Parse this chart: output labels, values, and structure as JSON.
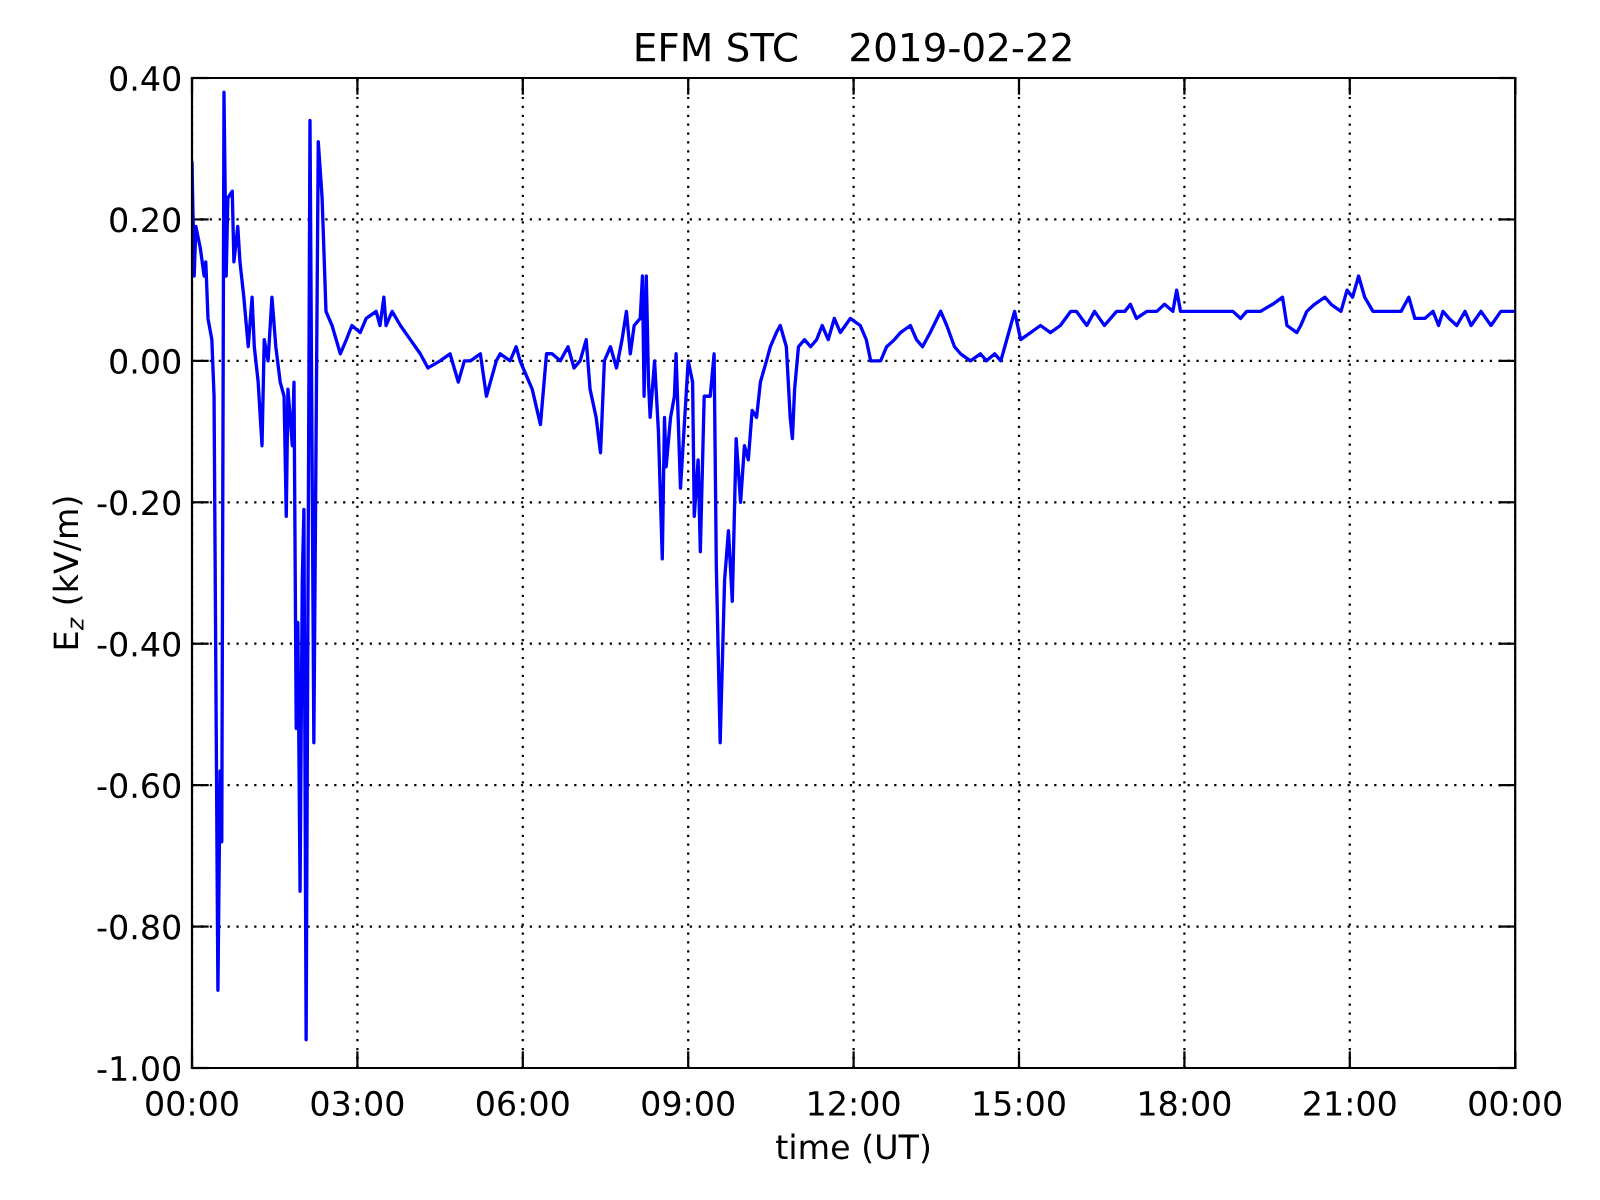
{
  "chart_data": {
    "type": "line",
    "title": "EFM STC    2019-02-22",
    "xlabel": "time (UT)",
    "ylabel": "E$_{z}$ (kV/m)",
    "xlim": [
      0,
      24
    ],
    "xticks": [
      {
        "value": 0,
        "label": "00:00"
      },
      {
        "value": 3,
        "label": "03:00"
      },
      {
        "value": 6,
        "label": "06:00"
      },
      {
        "value": 9,
        "label": "09:00"
      },
      {
        "value": 12,
        "label": "12:00"
      },
      {
        "value": 15,
        "label": "15:00"
      },
      {
        "value": 18,
        "label": "18:00"
      },
      {
        "value": 21,
        "label": "21:00"
      },
      {
        "value": 24,
        "label": "00:00"
      }
    ],
    "ylim": [
      -1.0,
      0.4
    ],
    "yticks": [
      {
        "value": -1.0,
        "label": "-1.00"
      },
      {
        "value": -0.8,
        "label": "-0.80"
      },
      {
        "value": -0.6,
        "label": "-0.60"
      },
      {
        "value": -0.4,
        "label": "-0.40"
      },
      {
        "value": -0.2,
        "label": "-0.20"
      },
      {
        "value": 0,
        "label": "0.00"
      },
      {
        "value": 0.2,
        "label": "0.20"
      },
      {
        "value": 0.4,
        "label": "0.40"
      }
    ],
    "grid": true,
    "marker": "none",
    "line_style": "solid",
    "series": [
      {
        "color": "#0000ff",
        "x": [
          0.0,
          0.04,
          0.07,
          0.15,
          0.22,
          0.25,
          0.29,
          0.36,
          0.4,
          0.47,
          0.51,
          0.54,
          0.58,
          0.62,
          0.65,
          0.73,
          0.76,
          0.83,
          0.87,
          0.94,
          1.02,
          1.09,
          1.13,
          1.2,
          1.27,
          1.31,
          1.38,
          1.45,
          1.52,
          1.6,
          1.67,
          1.71,
          1.74,
          1.82,
          1.85,
          1.89,
          1.92,
          1.96,
          2.0,
          2.03,
          2.07,
          2.14,
          2.21,
          2.29,
          2.36,
          2.43,
          2.54,
          2.69,
          2.8,
          2.9,
          3.05,
          3.16,
          3.34,
          3.41,
          3.48,
          3.52,
          3.63,
          3.78,
          3.96,
          4.14,
          4.28,
          4.5,
          4.68,
          4.83,
          4.94,
          5.05,
          5.23,
          5.34,
          5.52,
          5.59,
          5.77,
          5.88,
          5.95,
          6.06,
          6.17,
          6.32,
          6.43,
          6.53,
          6.68,
          6.82,
          6.93,
          7.04,
          7.15,
          7.22,
          7.33,
          7.41,
          7.48,
          7.59,
          7.7,
          7.8,
          7.88,
          7.95,
          8.02,
          8.13,
          8.17,
          8.2,
          8.24,
          8.28,
          8.31,
          8.39,
          8.46,
          8.53,
          8.57,
          8.6,
          8.68,
          8.75,
          8.78,
          8.86,
          8.93,
          9.0,
          9.08,
          9.11,
          9.18,
          9.22,
          9.29,
          9.4,
          9.47,
          9.51,
          9.58,
          9.66,
          9.73,
          9.8,
          9.87,
          9.95,
          10.02,
          10.09,
          10.16,
          10.24,
          10.31,
          10.42,
          10.49,
          10.6,
          10.67,
          10.78,
          10.85,
          10.89,
          10.93,
          11.0,
          11.11,
          11.22,
          11.33,
          11.43,
          11.54,
          11.65,
          11.76,
          11.94,
          12.12,
          12.23,
          12.31,
          12.49,
          12.6,
          12.74,
          12.85,
          13.03,
          13.14,
          13.25,
          13.39,
          13.58,
          13.69,
          13.83,
          13.94,
          14.12,
          14.3,
          14.41,
          14.56,
          14.67,
          14.85,
          14.92,
          15.03,
          15.21,
          15.39,
          15.57,
          15.75,
          15.94,
          16.04,
          16.23,
          16.37,
          16.55,
          16.77,
          16.92,
          17.02,
          17.13,
          17.32,
          17.5,
          17.64,
          17.79,
          17.86,
          17.93,
          18.11,
          18.3,
          18.48,
          18.66,
          18.88,
          19.02,
          19.13,
          19.28,
          19.38,
          19.6,
          19.78,
          19.86,
          20.04,
          20.11,
          20.22,
          20.36,
          20.55,
          20.66,
          20.84,
          20.95,
          21.05,
          21.16,
          21.27,
          21.42,
          21.56,
          21.74,
          21.93,
          22.07,
          22.18,
          22.36,
          22.51,
          22.61,
          22.69,
          22.8,
          22.94,
          23.09,
          23.2,
          23.38,
          23.56,
          23.74,
          23.92,
          23.99
        ],
        "values": [
          0.28,
          0.12,
          0.19,
          0.16,
          0.12,
          0.14,
          0.06,
          0.03,
          -0.05,
          -0.89,
          -0.58,
          -0.68,
          0.38,
          0.12,
          0.23,
          0.24,
          0.14,
          0.19,
          0.14,
          0.09,
          0.02,
          0.09,
          0.02,
          -0.03,
          -0.12,
          0.03,
          0.0,
          0.09,
          0.02,
          -0.03,
          -0.05,
          -0.22,
          -0.04,
          -0.12,
          -0.03,
          -0.52,
          -0.37,
          -0.75,
          -0.31,
          -0.21,
          -0.96,
          0.34,
          -0.54,
          0.31,
          0.23,
          0.07,
          0.05,
          0.01,
          0.03,
          0.05,
          0.04,
          0.06,
          0.07,
          0.05,
          0.09,
          0.05,
          0.07,
          0.05,
          0.03,
          0.01,
          -0.01,
          0.0,
          0.01,
          -0.03,
          0.0,
          0.0,
          0.01,
          -0.05,
          0.0,
          0.01,
          0.0,
          0.02,
          0.0,
          -0.02,
          -0.04,
          -0.09,
          0.01,
          0.01,
          0.0,
          0.02,
          -0.01,
          0.0,
          0.03,
          -0.04,
          -0.08,
          -0.13,
          0.0,
          0.02,
          -0.01,
          0.03,
          0.07,
          0.01,
          0.05,
          0.06,
          0.12,
          -0.05,
          0.12,
          -0.03,
          -0.08,
          0.0,
          -0.1,
          -0.28,
          -0.08,
          -0.15,
          -0.08,
          -0.05,
          0.01,
          -0.18,
          -0.09,
          0.0,
          -0.03,
          -0.22,
          -0.14,
          -0.27,
          -0.05,
          -0.05,
          0.01,
          -0.29,
          -0.54,
          -0.31,
          -0.24,
          -0.34,
          -0.11,
          -0.2,
          -0.12,
          -0.14,
          -0.07,
          -0.08,
          -0.03,
          0.0,
          0.02,
          0.04,
          0.05,
          0.02,
          -0.08,
          -0.11,
          -0.04,
          0.02,
          0.03,
          0.02,
          0.03,
          0.05,
          0.03,
          0.06,
          0.04,
          0.06,
          0.05,
          0.03,
          0.0,
          0.0,
          0.02,
          0.03,
          0.04,
          0.05,
          0.03,
          0.02,
          0.04,
          0.07,
          0.05,
          0.02,
          0.01,
          0.0,
          0.01,
          0.0,
          0.01,
          0.0,
          0.05,
          0.07,
          0.03,
          0.04,
          0.05,
          0.04,
          0.05,
          0.07,
          0.07,
          0.05,
          0.07,
          0.05,
          0.07,
          0.07,
          0.08,
          0.06,
          0.07,
          0.07,
          0.08,
          0.07,
          0.1,
          0.07,
          0.07,
          0.07,
          0.07,
          0.07,
          0.07,
          0.06,
          0.07,
          0.07,
          0.07,
          0.08,
          0.09,
          0.05,
          0.04,
          0.05,
          0.07,
          0.08,
          0.09,
          0.08,
          0.07,
          0.1,
          0.09,
          0.12,
          0.09,
          0.07,
          0.07,
          0.07,
          0.07,
          0.09,
          0.06,
          0.06,
          0.07,
          0.05,
          0.07,
          0.06,
          0.05,
          0.07,
          0.05,
          0.07,
          0.05,
          0.07,
          0.07,
          0.07
        ]
      }
    ]
  }
}
